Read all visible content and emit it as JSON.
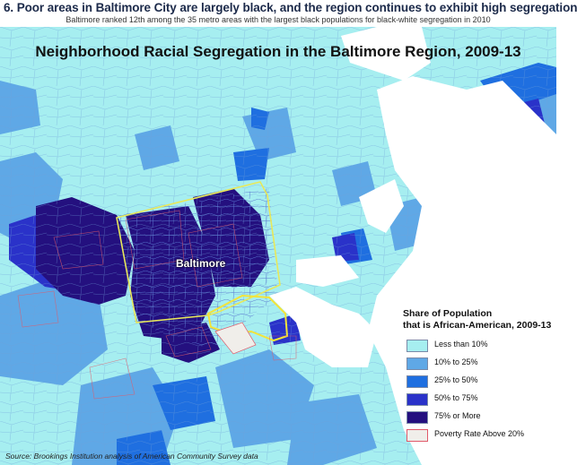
{
  "header": {
    "title": "6. Poor areas in Baltimore City are largely black, and the region continues to exhibit high segregation",
    "subtitle": "Baltimore ranked 12th among the 35 metro areas with the largest black populations for black-white segregation in 2010"
  },
  "map": {
    "title": "Neighborhood Racial Segregation in the Baltimore Region, 2009-13",
    "city_label": "Baltimore",
    "source": "Source: Brookings Institution analysis of American Community Survey data"
  },
  "legend": {
    "title_line1": "Share of Population",
    "title_line2": "that is African-American, 2009-13",
    "items": [
      {
        "label": "Less than 10%",
        "color": "#a6eef0"
      },
      {
        "label": "10% to 25%",
        "color": "#5fa8e6"
      },
      {
        "label": "25% to 50%",
        "color": "#1f6fe0"
      },
      {
        "label": "50% to 75%",
        "color": "#2a32c9"
      },
      {
        "label": "75% or More",
        "color": "#24107f"
      },
      {
        "label": "Poverty Rate Above 20%",
        "color": "#f0eeea",
        "border": "#e05a6a"
      }
    ]
  },
  "colors": {
    "water": "#ffffff",
    "tract_border": "#4a7ac0",
    "city_boundary": "#e8e85a",
    "poverty_outline": "#e05a6a"
  }
}
